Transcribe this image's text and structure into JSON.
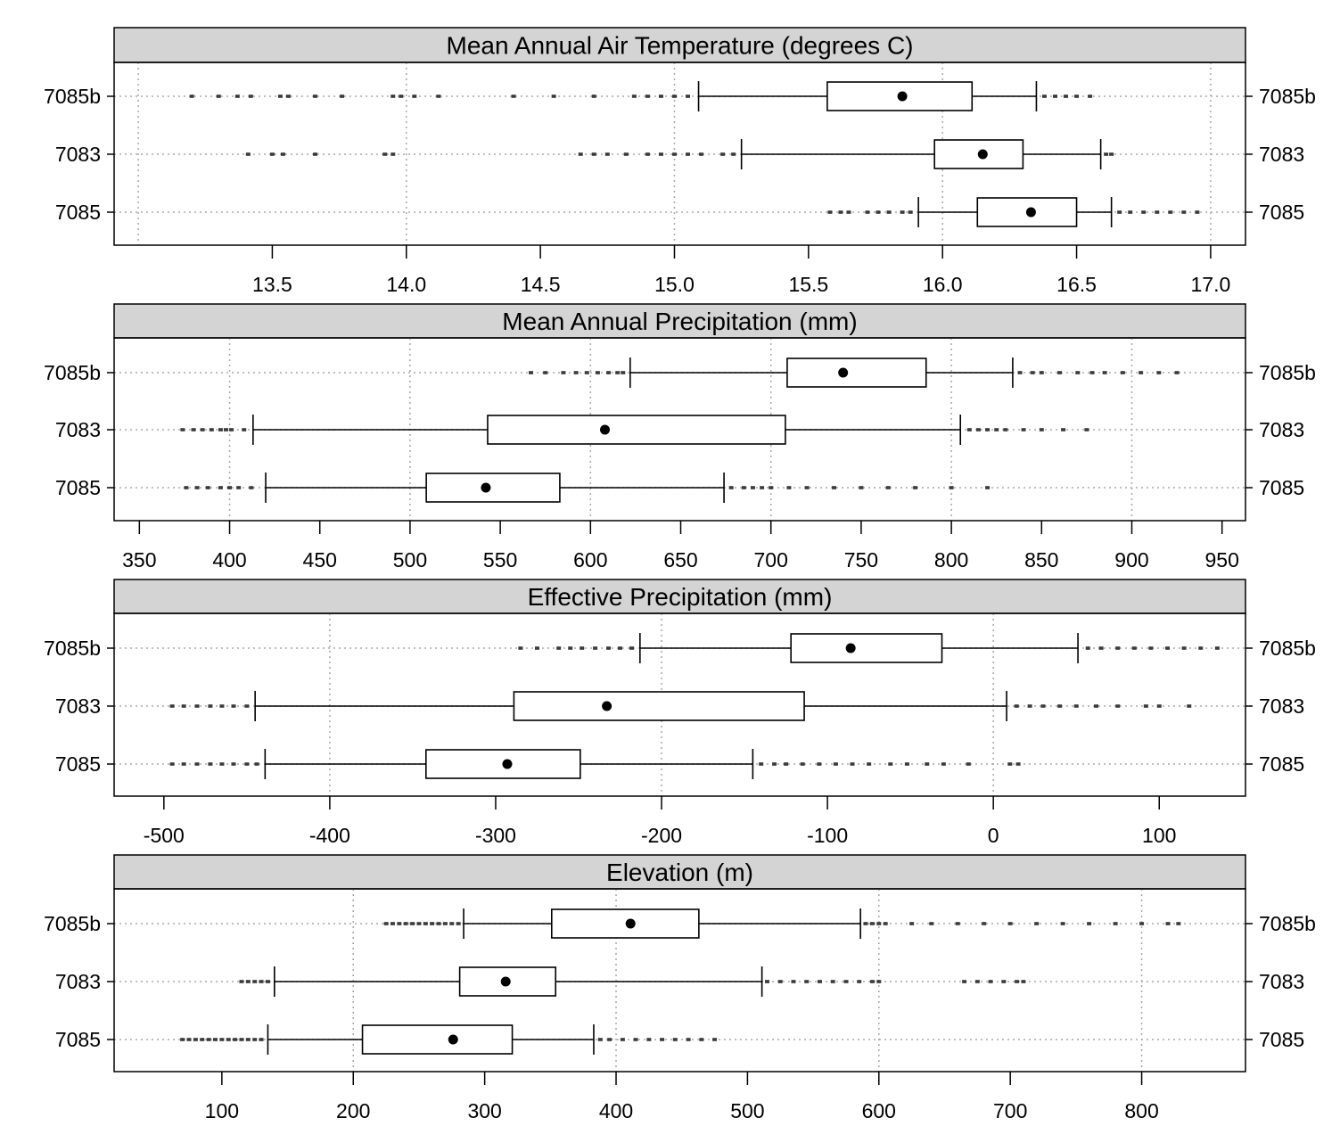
{
  "chart_data": [
    {
      "type": "boxplot",
      "title": "Mean Annual Air Temperature (degrees C)",
      "categories": [
        "7085b",
        "7083",
        "7085"
      ],
      "xlim": [
        12.91,
        17.13
      ],
      "xticks": [
        13.5,
        14.0,
        14.5,
        15.0,
        15.5,
        16.0,
        16.5,
        17.0
      ],
      "xtick_labels": [
        "13.5",
        "14.0",
        "14.5",
        "15.0",
        "15.5",
        "16.0",
        "16.5",
        "17.0"
      ],
      "gridlines": [
        13.0,
        14.0,
        15.0,
        16.0,
        17.0
      ],
      "boxes": [
        {
          "group": "7085b",
          "whisker_low": 15.09,
          "q1": 15.57,
          "median": 15.85,
          "q3": 16.11,
          "whisker_high": 16.35,
          "outliers": [
            13.2,
            13.3,
            13.37,
            13.42,
            13.53,
            13.56,
            13.66,
            13.76,
            13.95,
            13.98,
            14.03,
            14.12,
            14.4,
            14.55,
            14.7,
            14.85,
            14.9,
            14.95,
            15.0,
            15.05,
            16.38,
            16.42,
            16.46,
            16.5,
            16.55
          ]
        },
        {
          "group": "7083",
          "whisker_low": 15.25,
          "q1": 15.97,
          "median": 16.15,
          "q3": 16.3,
          "whisker_high": 16.59,
          "outliers": [
            13.41,
            13.5,
            13.54,
            13.66,
            13.92,
            13.95,
            14.65,
            14.7,
            14.75,
            14.82,
            14.9,
            14.95,
            15.0,
            15.05,
            15.1,
            15.18,
            15.22,
            16.61,
            16.63
          ]
        },
        {
          "group": "7085",
          "whisker_low": 15.91,
          "q1": 16.13,
          "median": 16.33,
          "q3": 16.5,
          "whisker_high": 16.63,
          "outliers": [
            15.58,
            15.62,
            15.65,
            15.72,
            15.76,
            15.8,
            15.85,
            15.88,
            16.66,
            16.7,
            16.75,
            16.8,
            16.85,
            16.9,
            16.95
          ]
        }
      ]
    },
    {
      "type": "boxplot",
      "title": "Mean Annual Precipitation (mm)",
      "categories": [
        "7085b",
        "7083",
        "7085"
      ],
      "xlim": [
        336,
        963
      ],
      "xticks": [
        350,
        400,
        450,
        500,
        550,
        600,
        650,
        700,
        750,
        800,
        850,
        900,
        950
      ],
      "xtick_labels": [
        "350",
        "400",
        "450",
        "500",
        "550",
        "600",
        "650",
        "700",
        "750",
        "800",
        "850",
        "900",
        "950"
      ],
      "gridlines": [
        400,
        500,
        600,
        700,
        800,
        900
      ],
      "boxes": [
        {
          "group": "7085b",
          "whisker_low": 622,
          "q1": 709,
          "median": 740,
          "q3": 786,
          "whisker_high": 834,
          "outliers": [
            567,
            575,
            585,
            592,
            598,
            604,
            610,
            615,
            618,
            838,
            845,
            850,
            860,
            870,
            878,
            885,
            895,
            905,
            915,
            925
          ]
        },
        {
          "group": "7083",
          "whisker_low": 413,
          "q1": 543,
          "median": 608,
          "q3": 708,
          "whisker_high": 805,
          "outliers": [
            374,
            380,
            385,
            390,
            395,
            398,
            401,
            408,
            810,
            815,
            820,
            825,
            830,
            840,
            850,
            862,
            875
          ]
        },
        {
          "group": "7085",
          "whisker_low": 420,
          "q1": 509,
          "median": 542,
          "q3": 583,
          "whisker_high": 674,
          "outliers": [
            376,
            382,
            388,
            395,
            400,
            405,
            412,
            678,
            685,
            690,
            695,
            700,
            710,
            720,
            735,
            750,
            765,
            780,
            800,
            820
          ]
        }
      ]
    },
    {
      "type": "boxplot",
      "title": "Effective Precipitation (mm)",
      "categories": [
        "7085b",
        "7083",
        "7085"
      ],
      "xlim": [
        -530,
        152
      ],
      "xticks": [
        -500,
        -400,
        -300,
        -200,
        -100,
        0,
        100
      ],
      "xtick_labels": [
        "-500",
        "-400",
        "-300",
        "-200",
        "-100",
        "0",
        "100"
      ],
      "gridlines": [
        -400,
        -200,
        0
      ],
      "boxes": [
        {
          "group": "7085b",
          "whisker_low": -213,
          "q1": -122,
          "median": -86,
          "q3": -31,
          "whisker_high": 51,
          "outliers": [
            -285,
            -275,
            -262,
            -255,
            -248,
            -240,
            -232,
            -225,
            -218,
            57,
            65,
            75,
            85,
            95,
            105,
            115,
            125,
            135
          ]
        },
        {
          "group": "7083",
          "whisker_low": -445,
          "q1": -289,
          "median": -233,
          "q3": -114,
          "whisker_high": 8,
          "outliers": [
            -495,
            -488,
            -480,
            -472,
            -465,
            -458,
            -450,
            14,
            22,
            30,
            40,
            50,
            62,
            75,
            92,
            100,
            118
          ]
        },
        {
          "group": "7085",
          "whisker_low": -439,
          "q1": -342,
          "median": -293,
          "q3": -249,
          "whisker_high": -145,
          "outliers": [
            -495,
            -488,
            -480,
            -472,
            -465,
            -458,
            -450,
            -444,
            -140,
            -132,
            -125,
            -115,
            -105,
            -95,
            -85,
            -75,
            -62,
            -52,
            -40,
            -30,
            -15,
            10,
            15
          ]
        }
      ]
    },
    {
      "type": "boxplot",
      "title": "Elevation (m)",
      "categories": [
        "7085b",
        "7083",
        "7085"
      ],
      "xlim": [
        18,
        879
      ],
      "xticks": [
        100,
        200,
        300,
        400,
        500,
        600,
        700,
        800
      ],
      "xtick_labels": [
        "100",
        "200",
        "300",
        "400",
        "500",
        "600",
        "700",
        "800"
      ],
      "gridlines": [
        200,
        400,
        600,
        800
      ],
      "boxes": [
        {
          "group": "7085b",
          "whisker_low": 284,
          "q1": 351,
          "median": 411,
          "q3": 463,
          "whisker_high": 586,
          "outliers": [
            225,
            230,
            235,
            240,
            245,
            250,
            255,
            260,
            265,
            270,
            275,
            280,
            590,
            595,
            600,
            605,
            625,
            640,
            660,
            680,
            700,
            720,
            740,
            760,
            780,
            800,
            820,
            828
          ]
        },
        {
          "group": "7083",
          "whisker_low": 140,
          "q1": 281,
          "median": 316,
          "q3": 354,
          "whisker_high": 511,
          "outliers": [
            115,
            120,
            125,
            130,
            135,
            515,
            525,
            535,
            545,
            555,
            565,
            575,
            585,
            595,
            600,
            665,
            675,
            685,
            695,
            705,
            710
          ]
        },
        {
          "group": "7085",
          "whisker_low": 135,
          "q1": 207,
          "median": 276,
          "q3": 321,
          "whisker_high": 383,
          "outliers": [
            70,
            75,
            80,
            85,
            90,
            95,
            100,
            105,
            110,
            115,
            120,
            125,
            130,
            388,
            395,
            405,
            415,
            425,
            435,
            445,
            455,
            465,
            475
          ]
        }
      ]
    }
  ]
}
